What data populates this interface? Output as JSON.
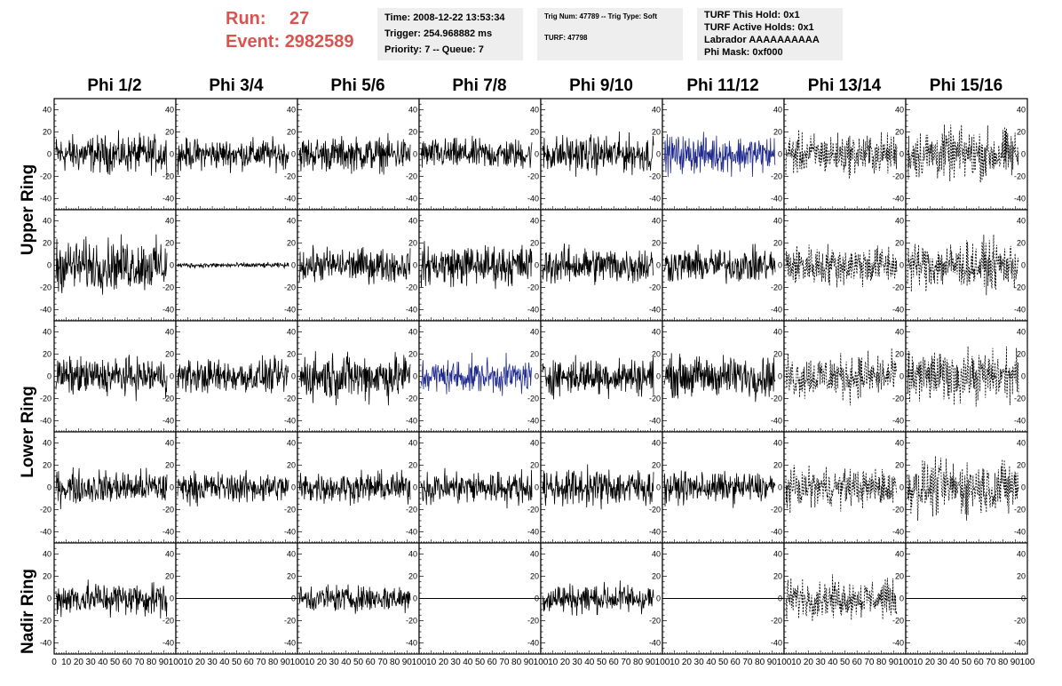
{
  "header": {
    "run_label": "Run:",
    "run_value": "27",
    "event_label": "Event:",
    "event_value": "2982589",
    "time_info": {
      "time": "Time: 2008-12-22 13:53:34",
      "trigger": "Trigger: 254.968882 ms",
      "priority": "Priority: 7 -- Queue: 7"
    },
    "trig_info": {
      "trig": "Trig Num: 47789 -- Trig Type: Soft",
      "turf": "TURF: 47798"
    },
    "turf_info": {
      "this_hold": "TURF This Hold: 0x1",
      "active_holds": "TURF Active Holds: 0x1",
      "labrador": "Labrador AAAAAAAAAA",
      "phi_mask": "Phi Mask: 0xf000"
    }
  },
  "columns": [
    "Phi 1/2",
    "Phi 3/4",
    "Phi 5/6",
    "Phi 7/8",
    "Phi 9/10",
    "Phi 11/12",
    "Phi 13/14",
    "Phi 15/16"
  ],
  "rows": [
    "Upper Ring",
    "Lower Ring",
    "Nadir Ring"
  ],
  "colors": {
    "normal": "#000000",
    "highlight": "#1f2a8c",
    "text_red": "#d9534f",
    "panel_bg": "#eeeeee"
  },
  "chart_data": {
    "type": "line",
    "ylim": [
      -50,
      50
    ],
    "y_ticks": [
      -40,
      -20,
      0,
      20,
      40
    ],
    "xlim": [
      0,
      100
    ],
    "x_ticks": [
      0,
      10,
      20,
      30,
      40,
      50,
      60,
      70,
      80,
      90,
      100
    ],
    "panels": [
      {
        "ring": "Upper Ring",
        "row": 0,
        "col": 0,
        "style": "solid",
        "color": "#000000",
        "amplitude": 22
      },
      {
        "ring": "Upper Ring",
        "row": 0,
        "col": 1,
        "style": "solid",
        "color": "#000000",
        "amplitude": 18
      },
      {
        "ring": "Upper Ring",
        "row": 0,
        "col": 2,
        "style": "solid",
        "color": "#000000",
        "amplitude": 20
      },
      {
        "ring": "Upper Ring",
        "row": 0,
        "col": 3,
        "style": "solid",
        "color": "#000000",
        "amplitude": 18
      },
      {
        "ring": "Upper Ring",
        "row": 0,
        "col": 4,
        "style": "solid",
        "color": "#000000",
        "amplitude": 22
      },
      {
        "ring": "Upper Ring",
        "row": 0,
        "col": 5,
        "style": "solid",
        "color": "#1f2a8c",
        "amplitude": 22
      },
      {
        "ring": "Upper Ring",
        "row": 0,
        "col": 6,
        "style": "dashed",
        "color": "#000000",
        "amplitude": 24
      },
      {
        "ring": "Upper Ring",
        "row": 0,
        "col": 7,
        "style": "dashed",
        "color": "#000000",
        "amplitude": 30
      },
      {
        "ring": "Upper Ring",
        "row": 1,
        "col": 0,
        "style": "solid",
        "color": "#000000",
        "amplitude": 30
      },
      {
        "ring": "Upper Ring",
        "row": 1,
        "col": 1,
        "style": "solid",
        "color": "#000000",
        "amplitude": 3
      },
      {
        "ring": "Upper Ring",
        "row": 1,
        "col": 2,
        "style": "solid",
        "color": "#000000",
        "amplitude": 20
      },
      {
        "ring": "Upper Ring",
        "row": 1,
        "col": 3,
        "style": "solid",
        "color": "#000000",
        "amplitude": 24
      },
      {
        "ring": "Upper Ring",
        "row": 1,
        "col": 4,
        "style": "solid",
        "color": "#000000",
        "amplitude": 22
      },
      {
        "ring": "Upper Ring",
        "row": 1,
        "col": 5,
        "style": "solid",
        "color": "#000000",
        "amplitude": 20
      },
      {
        "ring": "Upper Ring",
        "row": 1,
        "col": 6,
        "style": "dashed",
        "color": "#000000",
        "amplitude": 24
      },
      {
        "ring": "Upper Ring",
        "row": 1,
        "col": 7,
        "style": "dashed",
        "color": "#000000",
        "amplitude": 28
      },
      {
        "ring": "Lower Ring",
        "row": 2,
        "col": 0,
        "style": "solid",
        "color": "#000000",
        "amplitude": 22
      },
      {
        "ring": "Lower Ring",
        "row": 2,
        "col": 1,
        "style": "solid",
        "color": "#000000",
        "amplitude": 20
      },
      {
        "ring": "Lower Ring",
        "row": 2,
        "col": 2,
        "style": "solid",
        "color": "#000000",
        "amplitude": 28
      },
      {
        "ring": "Lower Ring",
        "row": 2,
        "col": 3,
        "style": "solid",
        "color": "#1f2a8c",
        "amplitude": 20
      },
      {
        "ring": "Lower Ring",
        "row": 2,
        "col": 4,
        "style": "solid",
        "color": "#000000",
        "amplitude": 22
      },
      {
        "ring": "Lower Ring",
        "row": 2,
        "col": 5,
        "style": "solid",
        "color": "#000000",
        "amplitude": 24
      },
      {
        "ring": "Lower Ring",
        "row": 2,
        "col": 6,
        "style": "dashed",
        "color": "#000000",
        "amplitude": 26
      },
      {
        "ring": "Lower Ring",
        "row": 2,
        "col": 7,
        "style": "dashed",
        "color": "#000000",
        "amplitude": 30
      },
      {
        "ring": "Lower Ring",
        "row": 3,
        "col": 0,
        "style": "solid",
        "color": "#000000",
        "amplitude": 20
      },
      {
        "ring": "Lower Ring",
        "row": 3,
        "col": 1,
        "style": "solid",
        "color": "#000000",
        "amplitude": 18
      },
      {
        "ring": "Lower Ring",
        "row": 3,
        "col": 2,
        "style": "solid",
        "color": "#000000",
        "amplitude": 18
      },
      {
        "ring": "Lower Ring",
        "row": 3,
        "col": 3,
        "style": "solid",
        "color": "#000000",
        "amplitude": 20
      },
      {
        "ring": "Lower Ring",
        "row": 3,
        "col": 4,
        "style": "solid",
        "color": "#000000",
        "amplitude": 22
      },
      {
        "ring": "Lower Ring",
        "row": 3,
        "col": 5,
        "style": "solid",
        "color": "#000000",
        "amplitude": 18
      },
      {
        "ring": "Lower Ring",
        "row": 3,
        "col": 6,
        "style": "dashed",
        "color": "#000000",
        "amplitude": 22
      },
      {
        "ring": "Lower Ring",
        "row": 3,
        "col": 7,
        "style": "dashed",
        "color": "#000000",
        "amplitude": 32
      },
      {
        "ring": "Nadir Ring",
        "row": 4,
        "col": 0,
        "style": "solid",
        "color": "#000000",
        "amplitude": 20
      },
      {
        "ring": "Nadir Ring",
        "row": 4,
        "col": 1,
        "style": "flat",
        "color": "#000000",
        "amplitude": 0
      },
      {
        "ring": "Nadir Ring",
        "row": 4,
        "col": 2,
        "style": "solid",
        "color": "#000000",
        "amplitude": 16
      },
      {
        "ring": "Nadir Ring",
        "row": 4,
        "col": 3,
        "style": "flat",
        "color": "#000000",
        "amplitude": 0
      },
      {
        "ring": "Nadir Ring",
        "row": 4,
        "col": 4,
        "style": "solid",
        "color": "#000000",
        "amplitude": 18
      },
      {
        "ring": "Nadir Ring",
        "row": 4,
        "col": 5,
        "style": "flat",
        "color": "#000000",
        "amplitude": 0
      },
      {
        "ring": "Nadir Ring",
        "row": 4,
        "col": 6,
        "style": "dashed",
        "color": "#000000",
        "amplitude": 22
      },
      {
        "ring": "Nadir Ring",
        "row": 4,
        "col": 7,
        "style": "flat",
        "color": "#000000",
        "amplitude": 0
      }
    ]
  }
}
